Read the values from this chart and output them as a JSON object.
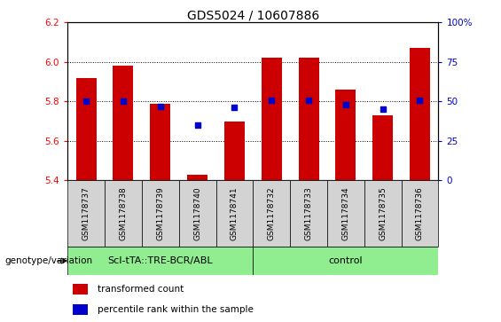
{
  "title": "GDS5024 / 10607886",
  "samples": [
    "GSM1178737",
    "GSM1178738",
    "GSM1178739",
    "GSM1178740",
    "GSM1178741",
    "GSM1178732",
    "GSM1178733",
    "GSM1178734",
    "GSM1178735",
    "GSM1178736"
  ],
  "transformed_count": [
    5.92,
    5.98,
    5.79,
    5.43,
    5.7,
    6.02,
    6.02,
    5.86,
    5.73,
    6.07
  ],
  "percentile_rank": [
    50,
    50,
    47,
    35,
    46,
    51,
    51,
    48,
    45,
    51
  ],
  "group1_label": "ScI-tTA::TRE-BCR/ABL",
  "group2_label": "control",
  "group_color": "#90EE90",
  "ylim_left": [
    5.4,
    6.2
  ],
  "ylim_right": [
    0,
    100
  ],
  "yticks_left": [
    5.4,
    5.6,
    5.8,
    6.0,
    6.2
  ],
  "yticks_right": [
    0,
    25,
    50,
    75,
    100
  ],
  "ytick_labels_right": [
    "0",
    "25",
    "50",
    "75",
    "100%"
  ],
  "bar_color": "#cc0000",
  "dot_color": "#0000cc",
  "bar_width": 0.55,
  "bar_bottom": 5.4,
  "grid_color": "#000000",
  "grid_values": [
    5.6,
    5.8,
    6.0
  ],
  "bg_plot": "#ffffff",
  "sample_box_color": "#d3d3d3",
  "legend_items": [
    {
      "label": "transformed count",
      "color": "#cc0000"
    },
    {
      "label": "percentile rank within the sample",
      "color": "#0000cc"
    }
  ],
  "genotype_label": "genotype/variation",
  "title_fontsize": 10,
  "tick_fontsize": 7.5,
  "sample_fontsize": 6.5,
  "group_fontsize": 8,
  "legend_fontsize": 7.5,
  "genotype_fontsize": 7.5
}
